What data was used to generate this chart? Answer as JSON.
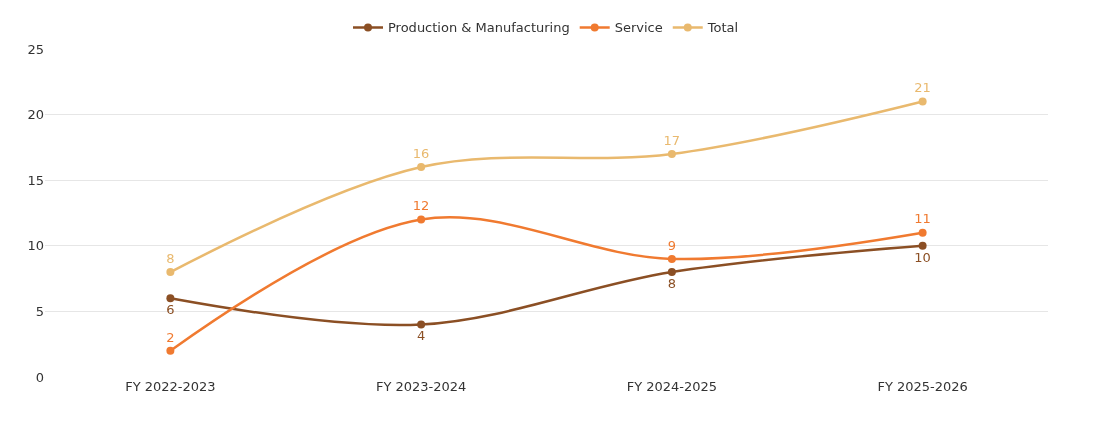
{
  "chart_data": {
    "type": "line",
    "categories": [
      "FY 2022-2023",
      "FY 2023-2024",
      "FY 2024-2025",
      "FY 2025-2026"
    ],
    "series": [
      {
        "name": "Production & Manufacturing",
        "color": "#8b4f24",
        "values": [
          6,
          4,
          8,
          10
        ]
      },
      {
        "name": "Service",
        "color": "#f07a30",
        "values": [
          2,
          12,
          9,
          11
        ]
      },
      {
        "name": "Total",
        "color": "#e9b96e",
        "values": [
          8,
          16,
          17,
          21
        ]
      }
    ],
    "ylim": [
      0,
      25
    ],
    "yticks": [
      0,
      5,
      10,
      15,
      20,
      25
    ],
    "grid": "y",
    "legend": "top",
    "marker": "circle",
    "line_style": "solid",
    "data_labels": true
  }
}
